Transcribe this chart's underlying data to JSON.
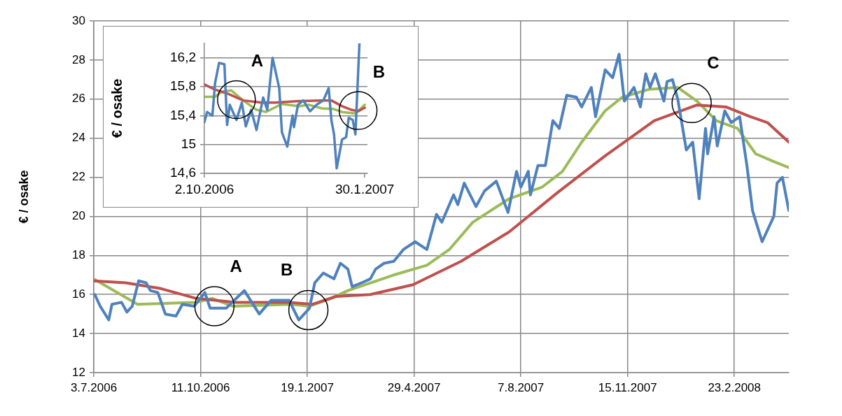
{
  "chart_data": [
    {
      "type": "line",
      "ylabel": "€ / osake",
      "grid": true,
      "xlim": [
        "2006-07-03",
        "2008-04-14"
      ],
      "xticks": [
        {
          "value": "2006-07-03",
          "label": "3.7.2006"
        },
        {
          "value": "2006-10-11",
          "label": "11.10.2006"
        },
        {
          "value": "2007-01-19",
          "label": "19.1.2007"
        },
        {
          "value": "2007-04-29",
          "label": "29.4.2007"
        },
        {
          "value": "2007-08-07",
          "label": "7.8.2007"
        },
        {
          "value": "2007-11-15",
          "label": "15.11.2007"
        },
        {
          "value": "2008-02-23",
          "label": "23.2.2008"
        }
      ],
      "ylim": [
        12,
        30
      ],
      "yticks": [
        12,
        14,
        16,
        18,
        20,
        22,
        24,
        26,
        28,
        30
      ],
      "series": [
        {
          "color": "#4f81bd",
          "x": [
            "2006-07-04",
            "2006-07-09",
            "2006-07-17",
            "2006-07-20",
            "2006-07-29",
            "2006-08-03",
            "2006-08-08",
            "2006-08-14",
            "2006-08-21",
            "2006-08-25",
            "2006-09-01",
            "2006-09-08",
            "2006-09-18",
            "2006-09-24",
            "2006-10-05",
            "2006-10-15",
            "2006-10-20",
            "2006-11-04",
            "2006-11-21",
            "2006-12-05",
            "2006-12-16",
            "2007-01-02",
            "2007-01-11",
            "2007-01-21",
            "2007-01-26",
            "2007-02-03",
            "2007-02-13",
            "2007-02-19",
            "2007-02-26",
            "2007-03-02",
            "2007-03-11",
            "2007-03-19",
            "2007-03-24",
            "2007-04-01",
            "2007-04-10",
            "2007-04-19",
            "2007-04-30",
            "2007-05-11",
            "2007-05-20",
            "2007-05-25",
            "2007-06-05",
            "2007-06-09",
            "2007-06-15",
            "2007-06-26",
            "2007-07-04",
            "2007-07-15",
            "2007-07-26",
            "2007-08-03",
            "2007-08-07",
            "2007-08-14",
            "2007-08-16",
            "2007-08-23",
            "2007-08-30",
            "2007-09-06",
            "2007-09-12",
            "2007-09-19",
            "2007-09-28",
            "2007-10-03",
            "2007-10-12",
            "2007-10-16",
            "2007-10-25",
            "2007-11-01",
            "2007-11-07",
            "2007-11-12",
            "2007-11-21",
            "2007-11-27",
            "2007-12-02",
            "2007-12-06",
            "2007-12-11",
            "2007-12-19",
            "2007-12-22",
            "2007-12-27",
            "2008-01-01",
            "2008-01-09",
            "2008-01-15",
            "2008-01-21",
            "2008-01-27",
            "2008-01-29",
            "2008-02-04",
            "2008-02-07",
            "2008-02-14",
            "2008-02-20",
            "2008-02-28",
            "2008-03-06",
            "2008-03-11",
            "2008-03-20",
            "2008-03-31",
            "2008-04-03",
            "2008-04-08",
            "2008-04-14"
          ],
          "values": [
            16.0,
            15.4,
            14.7,
            15.5,
            15.6,
            15.1,
            15.4,
            16.7,
            16.6,
            16.2,
            16.1,
            15.0,
            14.9,
            15.5,
            15.4,
            16.1,
            15.3,
            15.3,
            16.2,
            15.0,
            15.7,
            15.7,
            14.7,
            15.3,
            16.6,
            17.1,
            16.8,
            17.6,
            17.3,
            16.4,
            16.6,
            16.8,
            17.3,
            17.6,
            17.7,
            18.3,
            18.7,
            18.3,
            20.1,
            19.7,
            21.1,
            20.6,
            21.7,
            20.5,
            21.3,
            21.8,
            20.2,
            22.3,
            21.5,
            22.3,
            21.1,
            22.6,
            22.6,
            24.9,
            24.5,
            26.2,
            26.1,
            25.6,
            26.6,
            25.1,
            27.5,
            27.1,
            28.3,
            25.9,
            26.6,
            25.6,
            27.3,
            26.6,
            27.3,
            25.9,
            26.9,
            27.0,
            26.0,
            23.4,
            23.8,
            20.9,
            24.5,
            23.2,
            25.1,
            23.6,
            25.4,
            24.8,
            25.1,
            22.5,
            20.3,
            18.7,
            20.0,
            21.7,
            22.0,
            20.3
          ]
        },
        {
          "color": "#c0504d",
          "x": [
            "2006-07-03",
            "2006-08-02",
            "2006-09-04",
            "2006-10-07",
            "2006-11-13",
            "2007-01-02",
            "2007-01-24",
            "2007-02-15",
            "2007-03-19",
            "2007-04-28",
            "2007-06-12",
            "2007-07-27",
            "2007-09-10",
            "2007-10-25",
            "2007-12-10",
            "2008-01-19",
            "2008-02-15",
            "2008-03-09",
            "2008-03-25",
            "2008-04-14"
          ],
          "values": [
            16.7,
            16.6,
            16.3,
            15.8,
            15.6,
            15.6,
            15.5,
            15.9,
            16.0,
            16.5,
            17.7,
            19.2,
            21.2,
            23.1,
            24.9,
            25.7,
            25.6,
            25.1,
            24.8,
            23.8
          ]
        },
        {
          "color": "#9bbb59",
          "x": [
            "2006-07-03",
            "2006-08-13",
            "2006-10-07",
            "2006-10-22",
            "2006-11-10",
            "2007-01-04",
            "2007-01-21",
            "2007-02-10",
            "2007-02-26",
            "2007-04-10",
            "2007-05-11",
            "2007-06-01",
            "2007-06-23",
            "2007-07-27",
            "2007-08-27",
            "2007-09-15",
            "2007-10-03",
            "2007-10-25",
            "2007-11-10",
            "2007-12-05",
            "2008-01-01",
            "2008-01-19",
            "2008-02-06",
            "2008-02-26",
            "2008-03-14",
            "2008-03-31",
            "2008-04-14"
          ],
          "values": [
            16.8,
            15.5,
            15.6,
            15.8,
            15.4,
            15.5,
            15.4,
            15.8,
            16.2,
            17.0,
            17.5,
            18.3,
            19.7,
            20.9,
            21.5,
            22.3,
            23.8,
            25.4,
            26.1,
            26.5,
            26.6,
            25.9,
            24.9,
            24.5,
            23.2,
            22.8,
            22.5
          ]
        }
      ],
      "annotations": [
        {
          "text": "A",
          "x": "2006-10-24",
          "y": 15.4
        },
        {
          "text": "B",
          "x": "2007-01-20",
          "y": 15.2
        },
        {
          "text": "C",
          "x": "2008-01-14",
          "y": 25.8
        }
      ]
    },
    {
      "type": "line",
      "ylabel": "€ / osake",
      "grid": "y",
      "xlim": [
        "2006-10-02",
        "2007-02-01"
      ],
      "xticks": [
        {
          "value": "2006-10-02",
          "label": "2.10.2006"
        },
        {
          "value": "2007-01-30",
          "label": "30.1.2007"
        }
      ],
      "ylim": [
        14.6,
        16.4
      ],
      "yticks": [
        {
          "value": 14.6,
          "label": "14,6"
        },
        15,
        {
          "value": 15.4,
          "label": "15,4"
        },
        {
          "value": 15.8,
          "label": "15,8"
        },
        {
          "value": 16.2,
          "label": "16,2"
        }
      ],
      "series": [
        {
          "color": "#4f81bd",
          "x": [
            "2006-10-02",
            "2006-10-04",
            "2006-10-08",
            "2006-10-10",
            "2006-10-13",
            "2006-10-17",
            "2006-10-19",
            "2006-10-21",
            "2006-10-26",
            "2006-10-30",
            "2006-11-02",
            "2006-11-06",
            "2006-11-10",
            "2006-11-15",
            "2006-11-18",
            "2006-11-22",
            "2006-11-27",
            "2006-11-29",
            "2006-12-03",
            "2006-12-07",
            "2006-12-08",
            "2006-12-11",
            "2006-12-15",
            "2006-12-20",
            "2006-12-25",
            "2006-12-30",
            "2007-01-03",
            "2007-01-05",
            "2007-01-07",
            "2007-01-09",
            "2007-01-13",
            "2007-01-16",
            "2007-01-18",
            "2007-01-21",
            "2007-01-23",
            "2007-01-26"
          ],
          "values": [
            15.31,
            15.45,
            15.4,
            15.85,
            16.13,
            16.11,
            15.27,
            15.55,
            15.34,
            15.58,
            15.25,
            15.48,
            15.2,
            15.65,
            15.48,
            16.2,
            15.78,
            15.17,
            14.97,
            15.4,
            15.24,
            15.55,
            15.61,
            15.46,
            15.55,
            15.61,
            15.78,
            15.34,
            15.14,
            14.67,
            15.07,
            15.1,
            15.37,
            15.34,
            15.14,
            16.4
          ]
        },
        {
          "color": "#c0504d",
          "x": [
            "2006-10-02",
            "2006-10-10",
            "2006-10-20",
            "2006-10-31",
            "2006-11-14",
            "2006-11-24",
            "2006-12-10",
            "2006-12-28",
            "2007-01-05",
            "2007-01-13",
            "2007-01-20",
            "2007-01-25",
            "2007-01-30"
          ],
          "values": [
            15.83,
            15.76,
            15.7,
            15.61,
            15.58,
            15.58,
            15.6,
            15.61,
            15.61,
            15.53,
            15.48,
            15.46,
            15.51
          ]
        },
        {
          "color": "#9bbb59",
          "x": [
            "2006-10-02",
            "2006-10-10",
            "2006-10-15",
            "2006-10-22",
            "2006-10-31",
            "2006-11-10",
            "2006-11-17",
            "2006-11-29",
            "2006-12-12",
            "2006-12-19",
            "2006-12-29",
            "2007-01-07",
            "2007-01-13",
            "2007-01-23",
            "2007-01-30"
          ],
          "values": [
            15.66,
            15.66,
            15.73,
            15.75,
            15.61,
            15.48,
            15.45,
            15.56,
            15.53,
            15.55,
            15.5,
            15.49,
            15.45,
            15.43,
            15.55
          ]
        }
      ],
      "annotations": [
        {
          "text": "A",
          "x": "2006-10-26",
          "y": 15.62
        },
        {
          "text": "B",
          "x": "2007-01-25",
          "y": 15.47
        }
      ]
    }
  ]
}
